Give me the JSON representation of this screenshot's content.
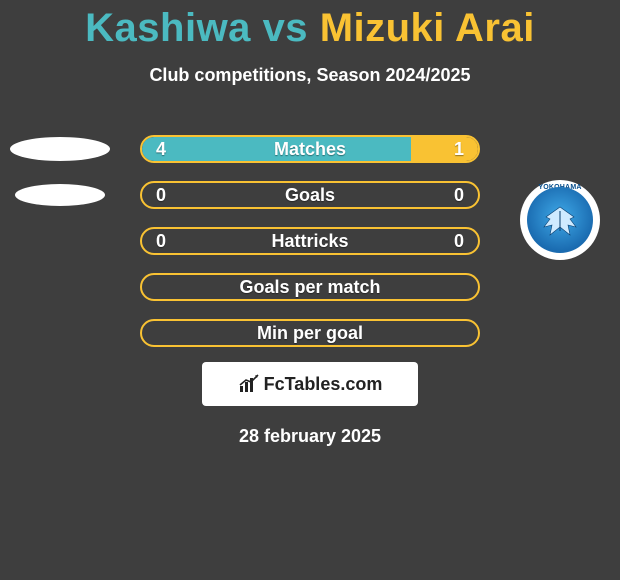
{
  "title": {
    "left_name": "Kashiwa",
    "vs": "vs",
    "right_name": "Mizuki Arai",
    "left_color": "#4bbac1",
    "right_color": "#f9c233"
  },
  "subtitle": "Club competitions, Season 2024/2025",
  "colors": {
    "bg": "#3e3e3e",
    "teal": "#4bbac1",
    "yellow": "#f9c233",
    "white": "#ffffff"
  },
  "stats": [
    {
      "label": "Matches",
      "left_val": "4",
      "right_val": "1",
      "left_fill_pct": 80,
      "right_fill_pct": 20,
      "show_vals": true,
      "border_color": "#f9c233",
      "left_color": "#4bbac1",
      "right_color": "#f9c233"
    },
    {
      "label": "Goals",
      "left_val": "0",
      "right_val": "0",
      "left_fill_pct": 0,
      "right_fill_pct": 0,
      "show_vals": true,
      "border_color": "#f9c233",
      "left_color": "#4bbac1",
      "right_color": "#f9c233"
    },
    {
      "label": "Hattricks",
      "left_val": "0",
      "right_val": "0",
      "left_fill_pct": 0,
      "right_fill_pct": 0,
      "show_vals": true,
      "border_color": "#f9c233",
      "left_color": "#4bbac1",
      "right_color": "#f9c233"
    },
    {
      "label": "Goals per match",
      "left_val": "",
      "right_val": "",
      "left_fill_pct": 0,
      "right_fill_pct": 0,
      "show_vals": false,
      "border_color": "#f9c233",
      "left_color": "#4bbac1",
      "right_color": "#f9c233"
    },
    {
      "label": "Min per goal",
      "left_val": "",
      "right_val": "",
      "left_fill_pct": 0,
      "right_fill_pct": 0,
      "show_vals": false,
      "border_color": "#f9c233",
      "left_color": "#4bbac1",
      "right_color": "#f9c233"
    }
  ],
  "left_badge": {
    "style": "ellipse-placeholder"
  },
  "right_badge": {
    "name": "YOKOHAMA",
    "bg": "#ffffff",
    "inner_gradient": [
      "#3fa9e8",
      "#1a6bb0"
    ]
  },
  "branding": "FcTables.com",
  "date": "28 february 2025"
}
